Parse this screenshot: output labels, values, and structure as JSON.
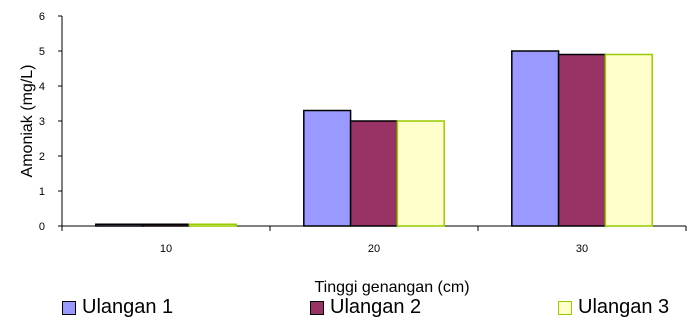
{
  "chart_data": {
    "type": "bar",
    "xlabel": "Tinggi genangan (cm)",
    "ylabel": "Amoniak (mg/L)",
    "ylim": [
      0,
      6
    ],
    "yticks": [
      "0",
      "1",
      "2",
      "3",
      "4",
      "5",
      "6"
    ],
    "categories": [
      "10",
      "20",
      "30"
    ],
    "series": [
      {
        "name": "Ulangan 1",
        "color": "#9999ff",
        "values": [
          0.05,
          3.3,
          5.0
        ]
      },
      {
        "name": "Ulangan 2",
        "color": "#993366",
        "values": [
          0.05,
          3.0,
          4.9
        ]
      },
      {
        "name": "Ulangan 3",
        "color": "#ffffcc",
        "edge": "#99cc00",
        "values": [
          0.05,
          3.0,
          4.9
        ]
      }
    ],
    "grid": false,
    "legend_position": "bottom"
  }
}
